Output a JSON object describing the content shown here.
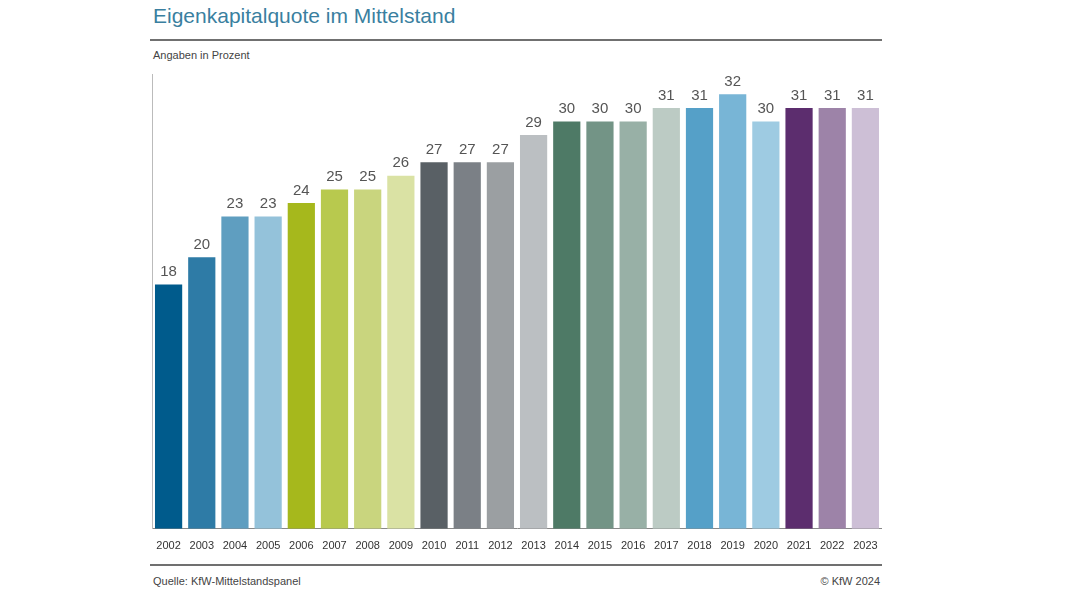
{
  "chart_data": {
    "type": "bar",
    "title": "Eigenkapitalquote im Mittelstand",
    "subtitle": "Angaben in Prozent",
    "source": "Quelle: KfW-Mittelstandspanel",
    "copyright": "© KfW 2024",
    "categories": [
      "2002",
      "2003",
      "2004",
      "2005",
      "2006",
      "2007",
      "2008",
      "2009",
      "2010",
      "2011",
      "2012",
      "2013",
      "2014",
      "2015",
      "2016",
      "2017",
      "2018",
      "2019",
      "2020",
      "2021",
      "2022",
      "2023"
    ],
    "values": [
      18,
      20,
      23,
      23,
      24,
      25,
      25,
      26,
      27,
      27,
      27,
      29,
      30,
      30,
      30,
      31,
      31,
      32,
      30,
      31,
      31,
      31
    ],
    "colors": [
      "#005b8c",
      "#2e7ba6",
      "#5f9ec0",
      "#94c2da",
      "#a6b81c",
      "#b8c94e",
      "#c9d57e",
      "#dae2a4",
      "#596065",
      "#7b8086",
      "#9b9fa2",
      "#bbbfc2",
      "#4e7a66",
      "#739486",
      "#98b0a6",
      "#bccbc4",
      "#55a0c8",
      "#78b5d6",
      "#9ecbe2",
      "#5c2d6e",
      "#9d83a8",
      "#cdbfd6"
    ],
    "ylim": [
      0,
      33.5
    ],
    "grid": false,
    "data_labels": true,
    "tick_labels": "x"
  }
}
